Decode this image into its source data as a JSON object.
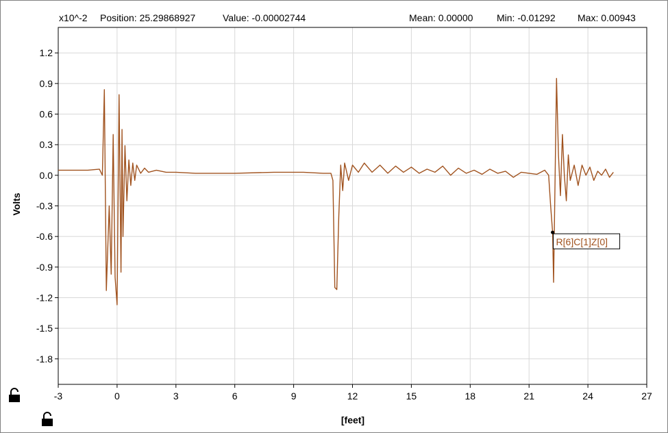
{
  "status_bar": {
    "scale": "x10^-2",
    "position": "Position: 25.29868927",
    "value": "Value: -0.00002744",
    "mean": "Mean: 0.00000",
    "min": "Min: -0.01292",
    "max": "Max: 0.00943"
  },
  "cursor_label": "R[6]C[1]Z[0]",
  "colors": {
    "trace": "#a0521e",
    "grid": "#d8d8d8",
    "axis": "#000000"
  },
  "chart_data": {
    "type": "line",
    "xlabel": "[feet]",
    "ylabel": "Volts",
    "xlim": [
      -3,
      27
    ],
    "ylim": [
      -2.05,
      1.45
    ],
    "xticks": [
      -3,
      0,
      3,
      6,
      9,
      12,
      15,
      18,
      21,
      24,
      27
    ],
    "yticks": [
      1.2,
      0.9,
      0.6,
      0.3,
      0.0,
      -0.3,
      -0.6,
      -0.9,
      -1.2,
      -1.5,
      -1.8
    ],
    "xtick_labels": [
      "-3",
      "0",
      "3",
      "6",
      "9",
      "12",
      "15",
      "18",
      "21",
      "24",
      "27"
    ],
    "ytick_labels": [
      "1.2",
      "0.9",
      "0.6",
      "0.3",
      "0.0",
      "-0.3",
      "-0.6",
      "-0.9",
      "-1.2",
      "-1.5",
      "-1.8"
    ],
    "grid": true,
    "cursor": {
      "x": 22.2,
      "y": -0.56
    },
    "series": [
      {
        "x": [
          -3,
          -1.5,
          -0.9,
          -0.75,
          -0.65,
          -0.55,
          -0.4,
          -0.3,
          -0.2,
          -0.1,
          0.0,
          0.1,
          0.2,
          0.25,
          0.3,
          0.4,
          0.5,
          0.6,
          0.7,
          0.8,
          0.9,
          1.0,
          1.2,
          1.4,
          1.6,
          2.0,
          2.5,
          3.0,
          4.0,
          6.0,
          8.0,
          9.5,
          10.5,
          10.9,
          11.0,
          11.1,
          11.2,
          11.3,
          11.4,
          11.5,
          11.6,
          11.8,
          12.0,
          12.3,
          12.6,
          13.0,
          13.4,
          13.8,
          14.2,
          14.6,
          15.0,
          15.4,
          15.8,
          16.2,
          16.6,
          17.0,
          17.4,
          17.8,
          18.2,
          18.6,
          19.0,
          19.4,
          19.8,
          20.2,
          20.6,
          21.0,
          21.4,
          21.8,
          22.0,
          22.1,
          22.2,
          22.25,
          22.4,
          22.5,
          22.6,
          22.7,
          22.8,
          22.9,
          23.0,
          23.1,
          23.3,
          23.5,
          23.7,
          23.9,
          24.1,
          24.3,
          24.5,
          24.7,
          24.9,
          25.1,
          25.3
        ],
        "y": [
          0.05,
          0.05,
          0.06,
          0.0,
          0.84,
          -1.13,
          -0.3,
          -0.97,
          0.4,
          -1.0,
          -1.27,
          0.79,
          -0.95,
          0.45,
          -0.6,
          0.29,
          -0.25,
          0.15,
          -0.1,
          0.12,
          -0.05,
          0.1,
          0.02,
          0.07,
          0.03,
          0.05,
          0.03,
          0.03,
          0.02,
          0.02,
          0.03,
          0.03,
          0.02,
          0.02,
          -0.05,
          -1.1,
          -1.12,
          -0.4,
          0.1,
          -0.15,
          0.12,
          -0.05,
          0.1,
          0.03,
          0.12,
          0.03,
          0.1,
          0.02,
          0.09,
          0.03,
          0.08,
          0.02,
          0.06,
          0.03,
          0.09,
          0.0,
          0.07,
          0.02,
          0.05,
          0.01,
          0.06,
          0.02,
          0.04,
          -0.02,
          0.03,
          0.02,
          0.01,
          0.05,
          0.0,
          -0.3,
          -0.56,
          -1.05,
          0.95,
          0.2,
          -0.2,
          0.4,
          0.0,
          -0.25,
          0.2,
          -0.05,
          0.1,
          -0.1,
          0.1,
          0.0,
          0.08,
          -0.05,
          0.04,
          0.0,
          0.06,
          -0.02,
          0.03
        ]
      }
    ]
  }
}
